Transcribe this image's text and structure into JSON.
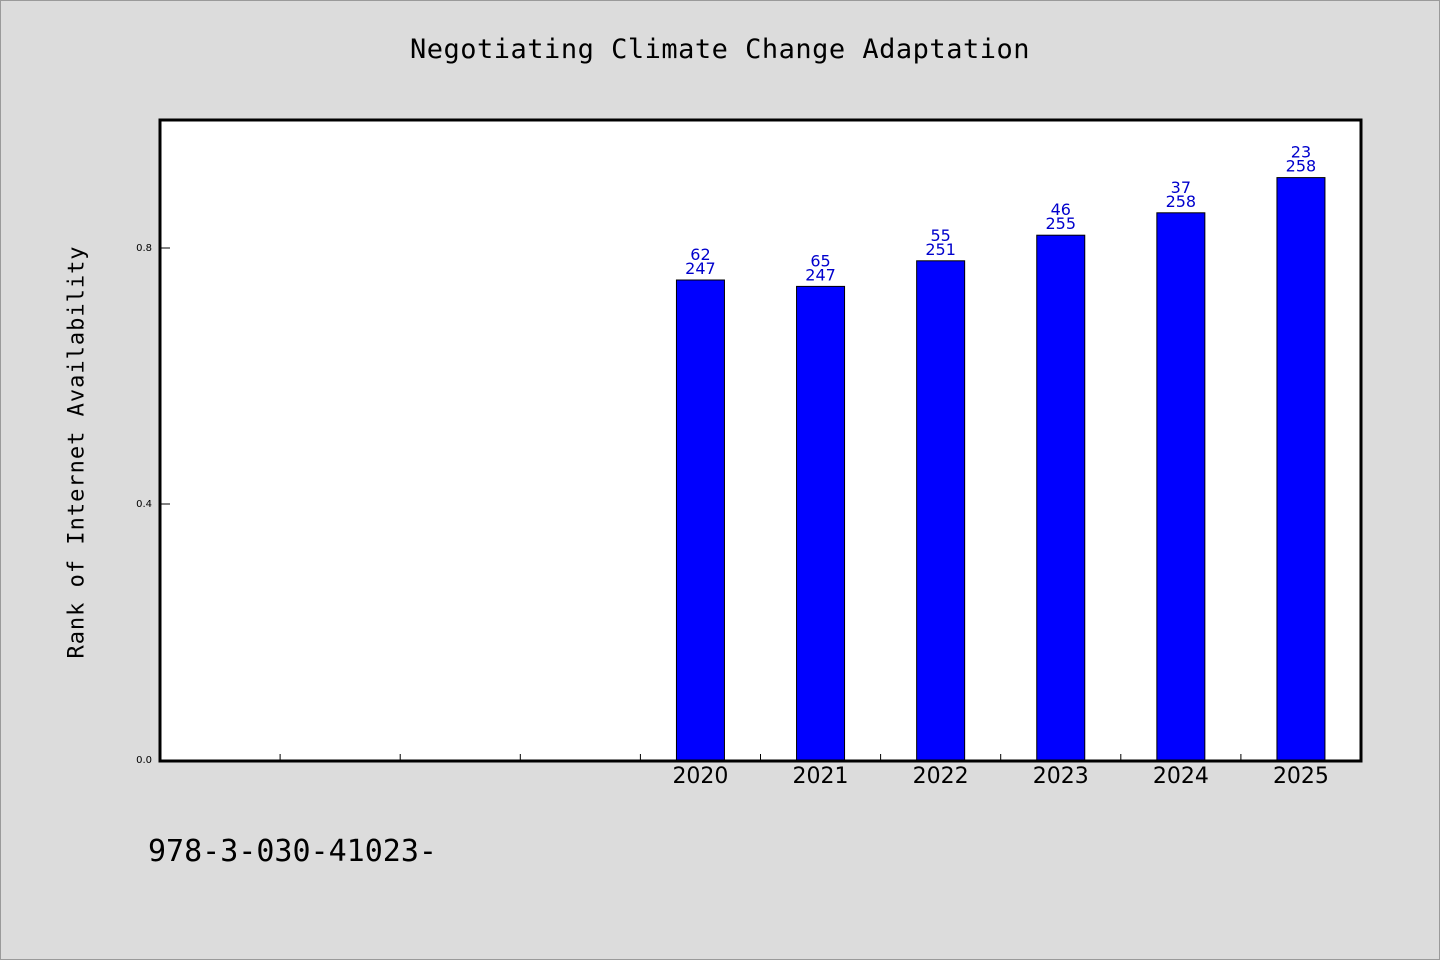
{
  "chart_data": {
    "type": "bar",
    "title": "Negotiating Climate Change Adaptation",
    "xlabel": "",
    "ylabel": "Rank of Internet Availability",
    "categories": [
      "2020",
      "2021",
      "2022",
      "2023",
      "2024",
      "2025"
    ],
    "values": [
      0.75,
      0.74,
      0.78,
      0.82,
      0.855,
      0.91
    ],
    "bar_labels_top": [
      "62",
      "65",
      "55",
      "46",
      "37",
      "23"
    ],
    "bar_labels_bottom": [
      "247",
      "247",
      "251",
      "255",
      "258",
      "258"
    ],
    "empty_leading_slots": 4,
    "ylim": [
      0,
      1.0
    ],
    "yticks": [
      "0.0",
      "0.4",
      "0.8"
    ],
    "ytick_values": [
      0.0,
      0.4,
      0.8
    ],
    "grid": false,
    "colors": {
      "bar": "#0000ff",
      "bar_label": "#0000cc",
      "background": "#dcdcdc",
      "plot_bg": "#ffffff"
    }
  },
  "footer": {
    "code": "978-3-030-41023-"
  }
}
